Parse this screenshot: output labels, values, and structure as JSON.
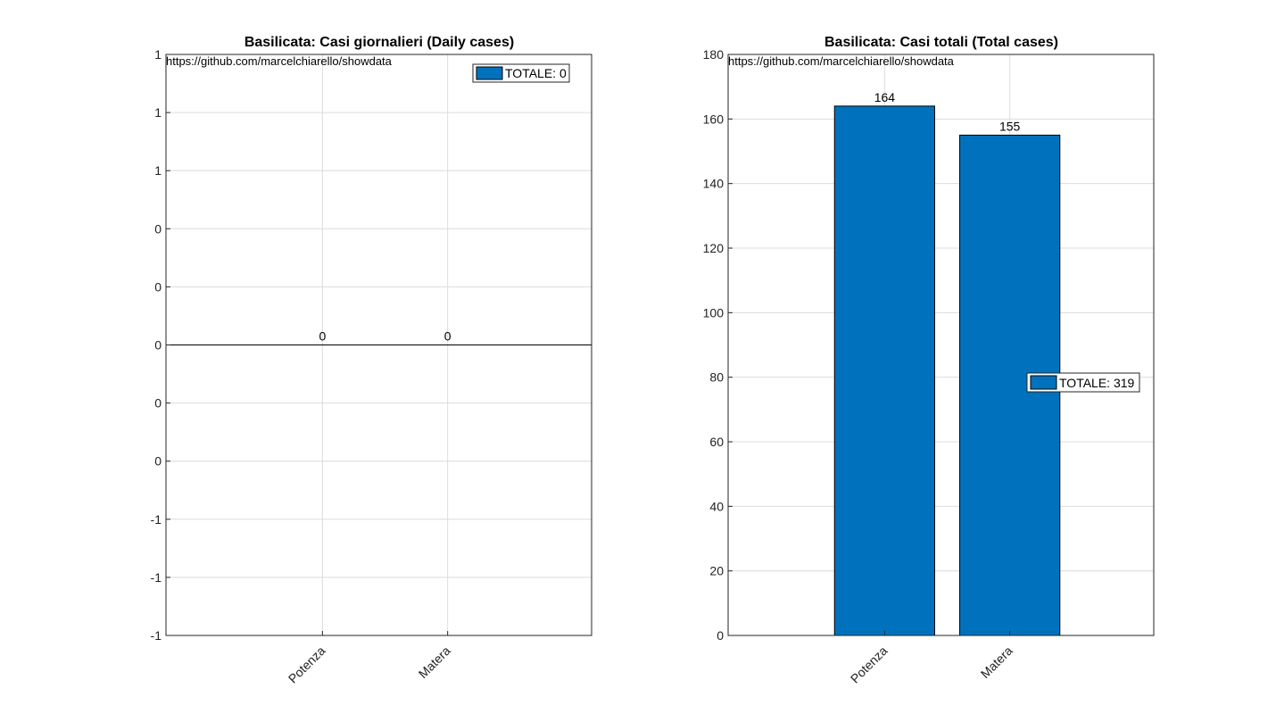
{
  "chart_data": [
    {
      "type": "bar",
      "title": "Basilicata: Casi giornalieri (Daily cases)",
      "annotation": "https://github.com/marcelchiarello/showdata",
      "categories": [
        "Potenza",
        "Matera"
      ],
      "values": [
        0,
        0
      ],
      "value_labels": [
        "0",
        "0"
      ],
      "ylim": [
        -1,
        1
      ],
      "yticks": [
        -1,
        -0.8,
        -0.6,
        -0.4,
        -0.2,
        0,
        0.2,
        0.4,
        0.6,
        0.8,
        1
      ],
      "ytick_labels": [
        "-1",
        "-1",
        "-1",
        "0",
        "0",
        "0",
        "0",
        "0",
        "1",
        "1",
        "1"
      ],
      "xlim": [
        -0.25,
        3.15
      ],
      "legend": {
        "text": "TOTALE: 0",
        "placement": "top-right"
      },
      "bar_color": "#0072BD",
      "grid": true
    },
    {
      "type": "bar",
      "title": "Basilicata: Casi totali (Total cases)",
      "annotation": "https://github.com/marcelchiarello/showdata",
      "categories": [
        "Potenza",
        "Matera"
      ],
      "values": [
        164,
        155
      ],
      "value_labels": [
        "164",
        "155"
      ],
      "ylim": [
        0,
        180
      ],
      "yticks": [
        0,
        20,
        40,
        60,
        80,
        100,
        120,
        140,
        160,
        180
      ],
      "ytick_labels": [
        "0",
        "20",
        "40",
        "60",
        "80",
        "100",
        "120",
        "140",
        "160",
        "180"
      ],
      "xlim": [
        -0.25,
        3.15
      ],
      "legend": {
        "text": "TOTALE: 319",
        "placement": "right"
      },
      "bar_color": "#0072BD",
      "grid": true
    }
  ]
}
